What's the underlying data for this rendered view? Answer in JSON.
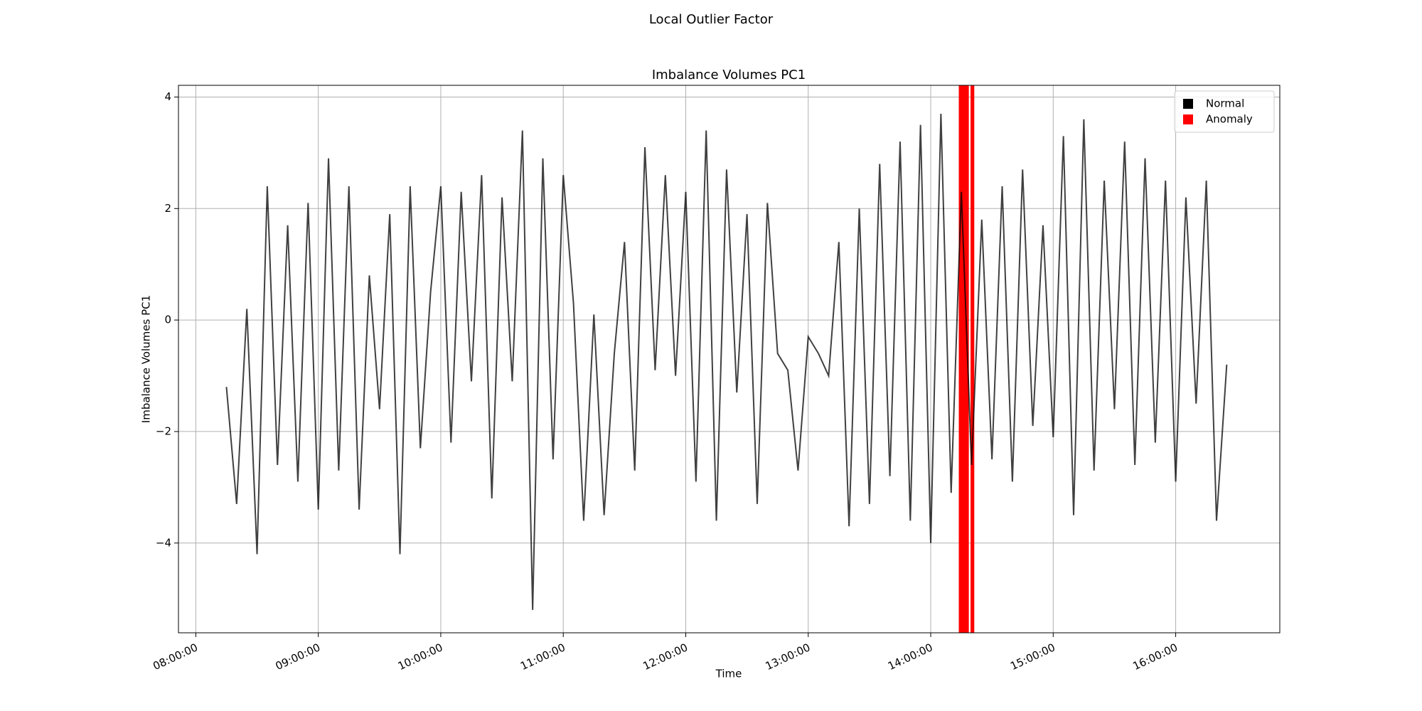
{
  "chart_data": {
    "type": "line",
    "suptitle": "Local Outlier Factor",
    "title": "Imbalance Volumes PC1",
    "x_label": "Time",
    "y_label": "Imbalance Volumes PC1",
    "x": [
      "08:15:00",
      "08:20:00",
      "08:25:00",
      "08:30:00",
      "08:35:00",
      "08:40:00",
      "08:45:00",
      "08:50:00",
      "08:55:00",
      "09:00:00",
      "09:05:00",
      "09:10:00",
      "09:15:00",
      "09:20:00",
      "09:25:00",
      "09:30:00",
      "09:35:00",
      "09:40:00",
      "09:45:00",
      "09:50:00",
      "09:55:00",
      "10:00:00",
      "10:05:00",
      "10:10:00",
      "10:15:00",
      "10:20:00",
      "10:25:00",
      "10:30:00",
      "10:35:00",
      "10:40:00",
      "10:45:00",
      "10:50:00",
      "10:55:00",
      "11:00:00",
      "11:05:00",
      "11:10:00",
      "11:15:00",
      "11:20:00",
      "11:25:00",
      "11:30:00",
      "11:35:00",
      "11:40:00",
      "11:45:00",
      "11:50:00",
      "11:55:00",
      "12:00:00",
      "12:05:00",
      "12:10:00",
      "12:15:00",
      "12:20:00",
      "12:25:00",
      "12:30:00",
      "12:35:00",
      "12:40:00",
      "12:45:00",
      "12:50:00",
      "12:55:00",
      "13:00:00",
      "13:05:00",
      "13:10:00",
      "13:15:00",
      "13:20:00",
      "13:25:00",
      "13:30:00",
      "13:35:00",
      "13:40:00",
      "13:45:00",
      "13:50:00",
      "13:55:00",
      "14:00:00",
      "14:05:00",
      "14:10:00",
      "14:15:00",
      "14:20:00",
      "14:25:00",
      "14:30:00",
      "14:35:00",
      "14:40:00",
      "14:45:00",
      "14:50:00",
      "14:55:00",
      "15:00:00",
      "15:05:00",
      "15:10:00",
      "15:15:00",
      "15:20:00",
      "15:25:00",
      "15:30:00",
      "15:35:00",
      "15:40:00",
      "15:45:00",
      "15:50:00",
      "15:55:00",
      "16:00:00",
      "16:05:00",
      "16:10:00",
      "16:15:00",
      "16:20:00",
      "16:25:00"
    ],
    "series": [
      {
        "name": "Normal",
        "color": "#000000",
        "values": [
          -1.2,
          -3.3,
          0.2,
          -4.2,
          2.4,
          -2.6,
          1.7,
          -2.9,
          2.1,
          -3.4,
          2.9,
          -2.7,
          2.4,
          -3.4,
          0.8,
          -1.6,
          1.9,
          -4.2,
          2.4,
          -2.3,
          0.5,
          2.4,
          -2.2,
          2.3,
          -1.1,
          2.6,
          -3.2,
          2.2,
          -1.1,
          3.4,
          -5.2,
          2.9,
          -2.5,
          2.6,
          0.3,
          -3.6,
          0.1,
          -3.5,
          -0.6,
          1.4,
          -2.7,
          3.1,
          -0.9,
          2.6,
          -1.0,
          2.3,
          -2.9,
          3.4,
          -3.6,
          2.7,
          -1.3,
          1.9,
          -3.3,
          2.1,
          -0.6,
          -0.9,
          -2.7,
          -0.3,
          -0.6,
          -1.0,
          1.4,
          -3.7,
          2.0,
          -3.3,
          2.8,
          -2.8,
          3.2,
          -3.6,
          3.5,
          -4.0,
          3.7,
          -3.1,
          2.3,
          -2.6,
          1.8,
          -2.5,
          2.4,
          -2.9,
          2.7,
          -1.9,
          1.7,
          -2.1,
          3.3,
          -3.5,
          3.6,
          -2.7,
          2.5,
          -1.6,
          3.2,
          -2.6,
          2.9,
          -2.2,
          2.5,
          -2.9,
          2.2,
          -1.5,
          2.5,
          -3.6,
          -0.8
        ]
      },
      {
        "name": "Anomaly",
        "color": "#ff0000",
        "spans": [
          [
            "14:13:45",
            "14:18:40"
          ],
          [
            "14:19:30",
            "14:21:20"
          ]
        ]
      }
    ],
    "xlim": [
      "07:51:30",
      "16:51:00"
    ],
    "xticks": [
      "08:00:00",
      "09:00:00",
      "10:00:00",
      "11:00:00",
      "12:00:00",
      "13:00:00",
      "14:00:00",
      "15:00:00",
      "16:00:00"
    ],
    "ylim": [
      -5.61,
      4.21
    ],
    "yticks": [
      {
        "value": -4,
        "label": "−4"
      },
      {
        "value": -2,
        "label": "−2"
      },
      0,
      2,
      4
    ],
    "grid": true,
    "legend": "upper right"
  }
}
